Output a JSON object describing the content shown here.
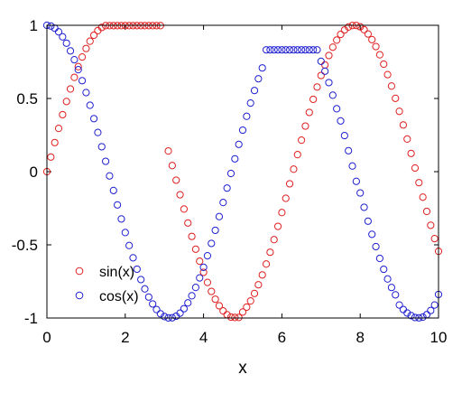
{
  "chart_data": {
    "type": "scatter",
    "title": "",
    "xlabel": "x",
    "ylabel": "",
    "xlim": [
      0,
      10
    ],
    "ylim": [
      -1,
      1
    ],
    "xticks": [
      0,
      2,
      4,
      6,
      8,
      10
    ],
    "yticks": [
      -1,
      -0.5,
      0,
      0.5,
      1
    ],
    "xtick_labels": [
      "0",
      "2",
      "4",
      "6",
      "8",
      "10"
    ],
    "ytick_labels": [
      "-1",
      "-0.5",
      "0",
      "0.5",
      "1"
    ],
    "grid": false,
    "box": true,
    "legend": {
      "placement": "bottom-left"
    },
    "x": [
      0.0,
      0.1,
      0.2,
      0.3,
      0.4,
      0.5,
      0.6,
      0.7,
      0.8,
      0.9,
      1.0,
      1.1,
      1.2,
      1.3,
      1.4,
      1.5,
      1.6,
      1.7,
      1.8,
      1.9,
      2.0,
      2.1,
      2.2,
      2.3,
      2.4,
      2.5,
      2.6,
      2.7,
      2.8,
      2.9,
      3.0,
      3.1,
      3.2,
      3.3,
      3.4,
      3.5,
      3.6,
      3.7,
      3.8,
      3.9,
      4.0,
      4.1,
      4.2,
      4.3,
      4.4,
      4.5,
      4.6,
      4.7,
      4.8,
      4.9,
      5.0,
      5.1,
      5.2,
      5.3,
      5.4,
      5.5,
      5.6,
      5.7,
      5.8,
      5.9,
      6.0,
      6.1,
      6.2,
      6.3,
      6.4,
      6.5,
      6.6,
      6.7,
      6.8,
      6.9,
      7.0,
      7.1,
      7.2,
      7.3,
      7.4,
      7.5,
      7.6,
      7.7,
      7.8,
      7.9,
      8.0,
      8.1,
      8.2,
      8.3,
      8.4,
      8.5,
      8.6,
      8.7,
      8.8,
      8.9,
      9.0,
      9.1,
      9.2,
      9.3,
      9.4,
      9.5,
      9.6,
      9.7,
      9.8,
      9.9,
      10.0
    ],
    "series": [
      {
        "name": "sin(x)",
        "color": "#e02020",
        "marker": "circle-open",
        "y": [
          0.0,
          0.0998,
          0.1987,
          0.2955,
          0.3894,
          0.4794,
          0.5646,
          0.6442,
          0.7174,
          0.7833,
          0.8415,
          0.8912,
          0.932,
          0.9636,
          0.9854,
          0.9975,
          0.9975,
          0.9975,
          0.9975,
          0.9975,
          0.9975,
          0.9975,
          0.9975,
          0.9975,
          0.9975,
          0.9975,
          0.9975,
          0.9975,
          0.9975,
          0.9975,
          null,
          0.1411,
          0.0416,
          -0.0584,
          -0.1577,
          -0.2555,
          -0.3508,
          -0.4425,
          -0.5298,
          -0.6119,
          -0.6878,
          -0.7568,
          -0.8183,
          -0.8716,
          -0.9162,
          -0.9516,
          -0.9776,
          -0.9937,
          -0.9962,
          -0.9962,
          -0.9589,
          -0.9258,
          -0.8835,
          -0.8323,
          -0.7728,
          -0.7055,
          -0.6313,
          -0.5507,
          -0.4646,
          -0.3739,
          -0.2794,
          -0.1822,
          -0.0831,
          0.0168,
          0.1165,
          0.2151,
          0.3115,
          0.4048,
          0.4941,
          0.5784,
          0.657,
          0.729,
          0.7937,
          0.8504,
          0.8987,
          0.938,
          0.9679,
          0.9882,
          0.9985,
          0.9989,
          0.9894,
          0.9699,
          0.9407,
          0.9022,
          0.8546,
          0.7985,
          0.7344,
          0.663,
          0.5849,
          0.501,
          0.4121,
          0.319,
          0.2229,
          0.1245,
          0.0248,
          -0.0752,
          -0.1743,
          -0.2718,
          -0.3665,
          -0.4575,
          -0.544
        ]
      },
      {
        "name": "cos(x)",
        "color": "#2020d0",
        "marker": "circle-open",
        "y": [
          1.0,
          0.995,
          0.9801,
          0.9553,
          0.9211,
          0.8776,
          0.8253,
          0.7648,
          0.6967,
          0.6216,
          0.5403,
          0.4536,
          0.3624,
          0.2675,
          0.17,
          0.0707,
          -0.0292,
          -0.1288,
          -0.2272,
          -0.3233,
          -0.4161,
          -0.5048,
          -0.5885,
          -0.6663,
          -0.7374,
          -0.8011,
          -0.8569,
          -0.904,
          -0.9422,
          -0.971,
          -0.99,
          -0.9991,
          -0.9983,
          -0.9875,
          -0.9668,
          -0.9365,
          -0.8968,
          -0.8481,
          -0.791,
          -0.7259,
          -0.6536,
          -0.5748,
          -0.4903,
          -0.4008,
          -0.3073,
          -0.2108,
          -0.1122,
          -0.0124,
          0.0875,
          0.1865,
          0.2837,
          0.378,
          0.4685,
          0.5544,
          0.6347,
          0.7087,
          0.8323,
          0.8323,
          0.8323,
          0.8323,
          0.8323,
          0.8323,
          0.8323,
          0.8323,
          0.8323,
          0.8323,
          0.8323,
          0.8323,
          0.8323,
          0.8323,
          0.7539,
          0.6865,
          0.6084,
          0.5222,
          0.4296,
          0.3466,
          0.2464,
          0.1433,
          0.0384,
          -0.0663,
          -0.1455,
          -0.2435,
          -0.3383,
          -0.4282,
          -0.5123,
          -0.5928,
          -0.6669,
          -0.7332,
          -0.7914,
          -0.8418,
          -0.9111,
          -0.9416,
          -0.9659,
          -0.984,
          -0.9965,
          -0.9989,
          -0.9939,
          -0.9769,
          -0.9488,
          -0.9111,
          -0.8391
        ]
      }
    ]
  }
}
